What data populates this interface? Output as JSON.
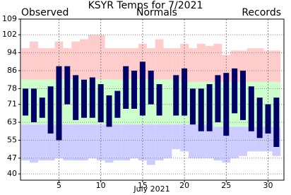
{
  "chart_data": {
    "type": "range-bar",
    "title": "KSYR Temps for 7/2021",
    "xlabel": "July 2021",
    "x": [
      1,
      2,
      3,
      4,
      5,
      6,
      7,
      8,
      9,
      10,
      11,
      12,
      13,
      14,
      15,
      16,
      17,
      18,
      19,
      20,
      21,
      22,
      23,
      24,
      25,
      26,
      27,
      28,
      29,
      30,
      31
    ],
    "xlim": [
      0.4,
      31.9
    ],
    "xticks": [
      5,
      10,
      15,
      20,
      25,
      30
    ],
    "ylim": [
      37.2,
      109
    ],
    "yticks": [
      40,
      47,
      55,
      63,
      71,
      78,
      86,
      94,
      102,
      109
    ],
    "grid": true,
    "series": [
      {
        "name": "Observed",
        "color": "#000066",
        "high": [
          78,
          78,
          74,
          79,
          88,
          88,
          84,
          82,
          83,
          80,
          75,
          77,
          88,
          86,
          90,
          86,
          80,
          null,
          84,
          87,
          78,
          78,
          80,
          84,
          85,
          87,
          86,
          79,
          74,
          71,
          74
        ],
        "low": [
          66,
          63,
          65,
          58,
          55,
          71,
          64,
          65,
          65,
          63,
          61,
          65,
          69,
          69,
          66,
          71,
          66,
          null,
          66,
          66,
          62,
          59,
          59,
          63,
          57,
          67,
          64,
          59,
          56,
          58,
          52
        ]
      },
      {
        "name": "Normals",
        "color": "#009900",
        "band_color": "#ccffcc",
        "high": [
          82,
          82,
          82,
          82,
          82,
          82,
          82,
          82,
          82,
          82,
          82,
          82,
          82,
          82,
          82,
          82,
          82,
          82,
          82,
          81,
          81,
          81,
          81,
          81,
          81,
          81,
          81,
          81,
          81,
          81,
          81
        ],
        "low": [
          62,
          62,
          62,
          62,
          62,
          62,
          62,
          62,
          62,
          62,
          62,
          62,
          62,
          62,
          62,
          62,
          62,
          62,
          62,
          62,
          62,
          62,
          62,
          61,
          61,
          61,
          61,
          61,
          61,
          61,
          61
        ]
      },
      {
        "name": "Records",
        "color": "#cc88cc",
        "band_high_color": "#ffcccc",
        "band_low_color": "#ccccff",
        "high": [
          96,
          99,
          96,
          96,
          99,
          96,
          99,
          100,
          102,
          102,
          96,
          96,
          96,
          96,
          98,
          96,
          100,
          96,
          96,
          98,
          96,
          98,
          97,
          98,
          93,
          95,
          95,
          96,
          96,
          95,
          95
        ],
        "low": [
          46,
          45,
          46,
          46,
          47,
          46,
          46,
          46,
          47,
          46,
          45,
          46,
          46,
          47,
          46,
          44,
          46,
          47,
          51,
          50,
          47,
          47,
          47,
          46,
          45,
          47,
          48,
          50,
          50,
          50,
          48
        ]
      }
    ]
  }
}
